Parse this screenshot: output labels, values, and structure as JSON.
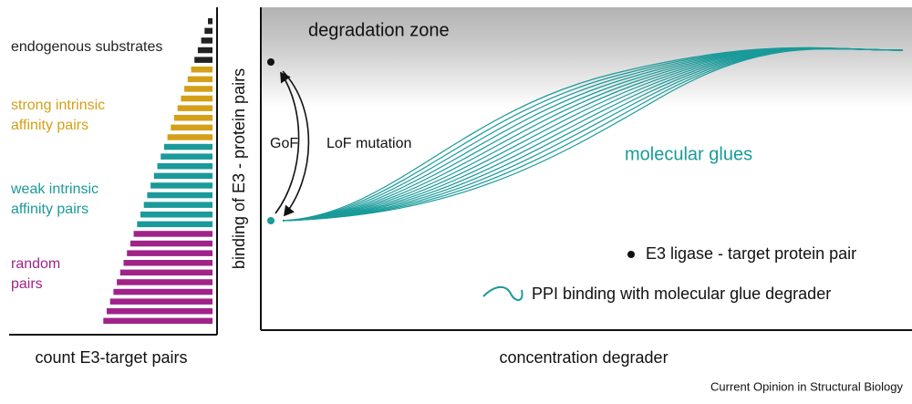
{
  "left_panel": {
    "groups": [
      {
        "lines": [
          "endogenous substrates"
        ]
      },
      {
        "lines": [
          "strong intrinsic",
          "affinity pairs"
        ]
      },
      {
        "lines": [
          "weak intrinsic",
          "affinity pairs"
        ]
      },
      {
        "lines": [
          "random",
          "pairs"
        ]
      }
    ],
    "axis_label": "count E3-target pairs"
  },
  "right_panel": {
    "zone_label": "degradation zone",
    "y_axis_label": "binding of E3 - protein pairs",
    "x_axis_label": "concentration degrader",
    "arrow_labels": [
      "GoF",
      "LoF mutation"
    ],
    "curve_label": "molecular glues",
    "legend": [
      "E3 ligase - target protein pair",
      "PPI binding with molecular glue degrader"
    ]
  },
  "credit": "Current Opinion in Structural Biology"
}
